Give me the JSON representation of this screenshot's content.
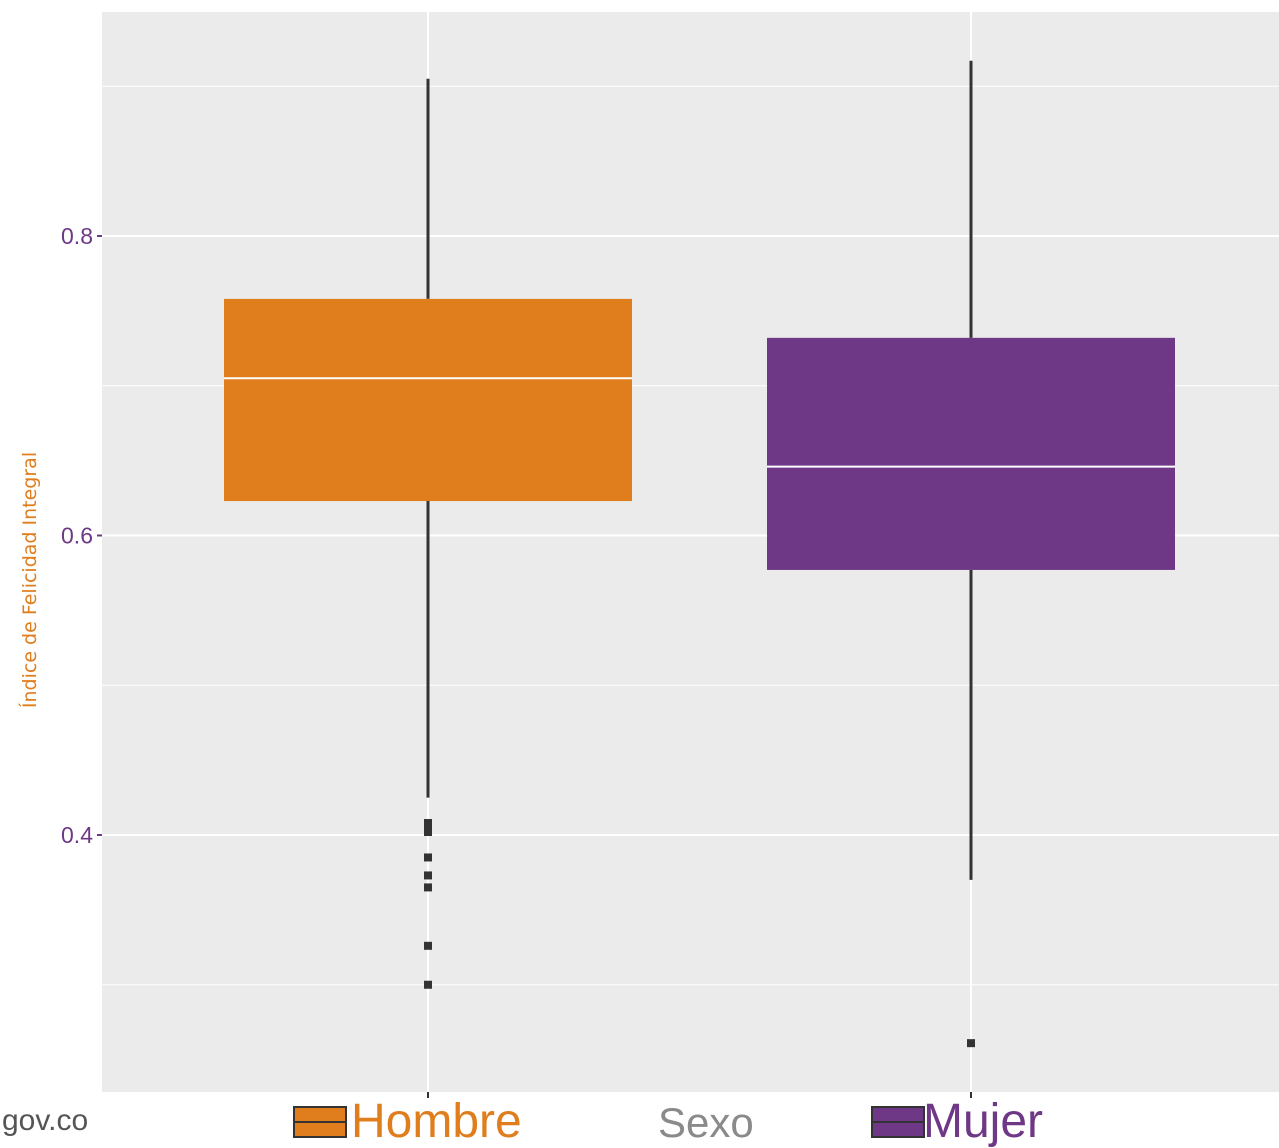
{
  "chart_data": {
    "type": "boxplot",
    "ylabel": "Índice de Felicidad Integral",
    "xlabel": "Sexo",
    "ylim": [
      0.23,
      0.95
    ],
    "yticks": [
      0.4,
      0.6,
      0.8
    ],
    "ytick_labels": [
      "0.4",
      "0.6",
      "0.8"
    ],
    "y_minor_gridlines": [
      0.3,
      0.5,
      0.7,
      0.9
    ],
    "grid": true,
    "legend_position": "bottom",
    "categories": [
      "Hombre",
      "Mujer"
    ],
    "series": [
      {
        "name": "Hombre",
        "color": "#E07D1D",
        "whisker_low": 0.425,
        "q1": 0.623,
        "median": 0.705,
        "q3": 0.758,
        "whisker_high": 0.905,
        "outliers": [
          0.408,
          0.405,
          0.402,
          0.385,
          0.373,
          0.365,
          0.326,
          0.3
        ]
      },
      {
        "name": "Mujer",
        "color": "#6E3886",
        "whisker_low": 0.37,
        "q1": 0.577,
        "median": 0.646,
        "q3": 0.732,
        "whisker_high": 0.917,
        "outliers": [
          0.261
        ]
      }
    ]
  },
  "colors": {
    "panel_background": "#EBEBEB",
    "grid": "#FFFFFF",
    "tick_label": "#6E3886",
    "ylabel": "#E07D1D",
    "outlier": "#333333"
  },
  "footer": {
    "source": "gov.co"
  }
}
